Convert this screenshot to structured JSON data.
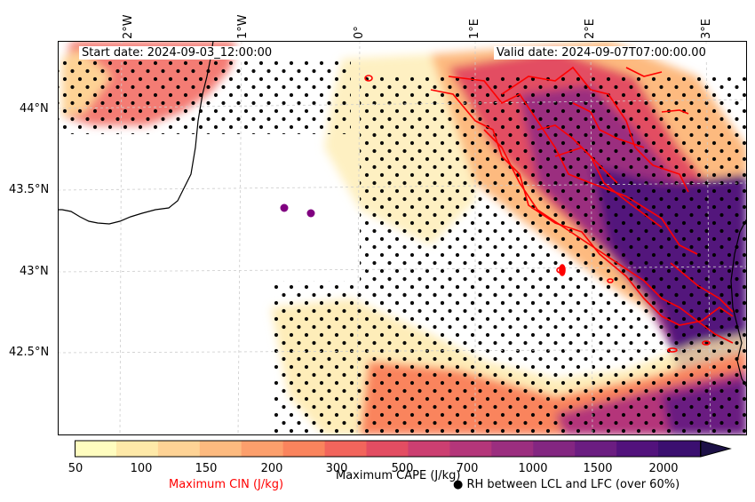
{
  "header": {
    "start_date": "Start date: 2024-09-03_12:00:00",
    "valid_date": "Valid  date: 2024-09-07T07:00:00.00"
  },
  "map": {
    "lon_labels": [
      "2°W",
      "1°W",
      "0°",
      "1°E",
      "2°E",
      "3°E"
    ],
    "lat_labels": [
      "44°N",
      "43.5°N",
      "43°N",
      "42.5°N"
    ],
    "palette_name": "magma_r",
    "colors": {
      "coast": "#000000",
      "cin_contour": "#ff0000",
      "rh_dot": "#000000",
      "marker": "#800080",
      "grid": "#cccccc"
    }
  },
  "colorbar": {
    "ticks": [
      "50",
      "100",
      "150",
      "200",
      "300",
      "500",
      "700",
      "1000",
      "1500",
      "2000"
    ],
    "label": "Maximum CAPE (J/kg)",
    "colors": [
      "#fffdbf",
      "#fee9a8",
      "#fed395",
      "#fdba7f",
      "#fc9f6c",
      "#fa845d",
      "#f2655c",
      "#e34d62",
      "#cc3f71",
      "#b4367a",
      "#9b2e7f",
      "#832681",
      "#6b1d81",
      "#52127c",
      "#3b0f70",
      "#1d1147"
    ]
  },
  "legend": {
    "cin_label": "Maximum CIN (J/kg)",
    "rh_label": "RH between LCL and LFC (over 60%)",
    "rh_symbol": "●"
  }
}
